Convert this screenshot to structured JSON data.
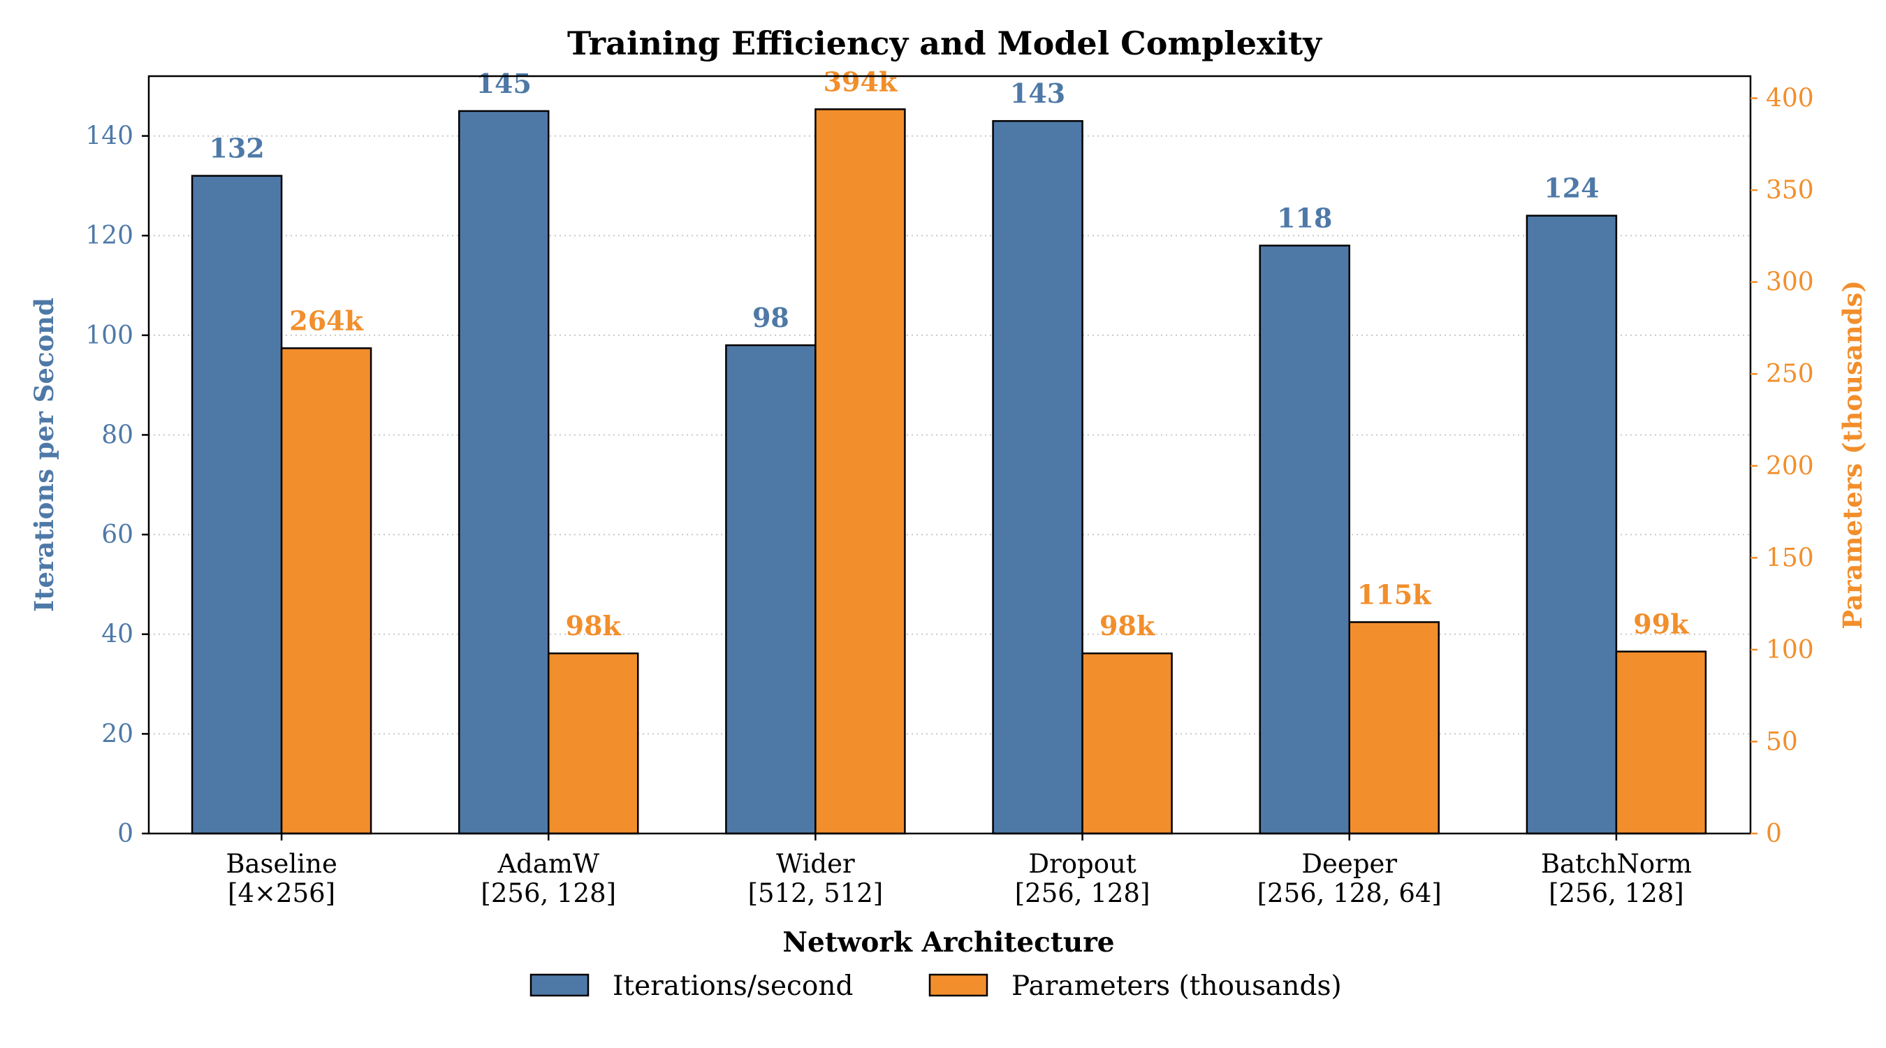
{
  "chart_data": {
    "type": "bar",
    "title": "Training Efficiency and Model Complexity",
    "xlabel": "Network Architecture",
    "ylabel_left": "Iterations per Second",
    "ylabel_right": "Parameters (thousands)",
    "categories": [
      {
        "name": "Baseline",
        "config": "[4×256]"
      },
      {
        "name": "AdamW",
        "config": "[256, 128]"
      },
      {
        "name": "Wider",
        "config": "[512, 512]"
      },
      {
        "name": "Dropout",
        "config": "[256, 128]"
      },
      {
        "name": "Deeper",
        "config": "[256, 128, 64]"
      },
      {
        "name": "BatchNorm",
        "config": "[256, 128]"
      }
    ],
    "series": [
      {
        "name": "Iterations/second",
        "axis": "left",
        "color": "#4e79a7",
        "values": [
          132,
          145,
          98,
          143,
          118,
          124
        ],
        "labels": [
          "132",
          "145",
          "98",
          "143",
          "118",
          "124"
        ]
      },
      {
        "name": "Parameters (thousands)",
        "axis": "right",
        "color": "#f28e2b",
        "values": [
          264,
          98,
          394,
          98,
          115,
          99
        ],
        "labels": [
          "264k",
          "98k",
          "394k",
          "98k",
          "115k",
          "99k"
        ]
      }
    ],
    "ylim_left": [
      0,
      152
    ],
    "ylim_right": [
      0,
      412
    ],
    "yticks_left": [
      0,
      20,
      40,
      60,
      80,
      100,
      120,
      140
    ],
    "yticks_right": [
      0,
      50,
      100,
      150,
      200,
      250,
      300,
      350,
      400
    ],
    "grid": "y-dotted",
    "legend_position": "bottom-center"
  }
}
